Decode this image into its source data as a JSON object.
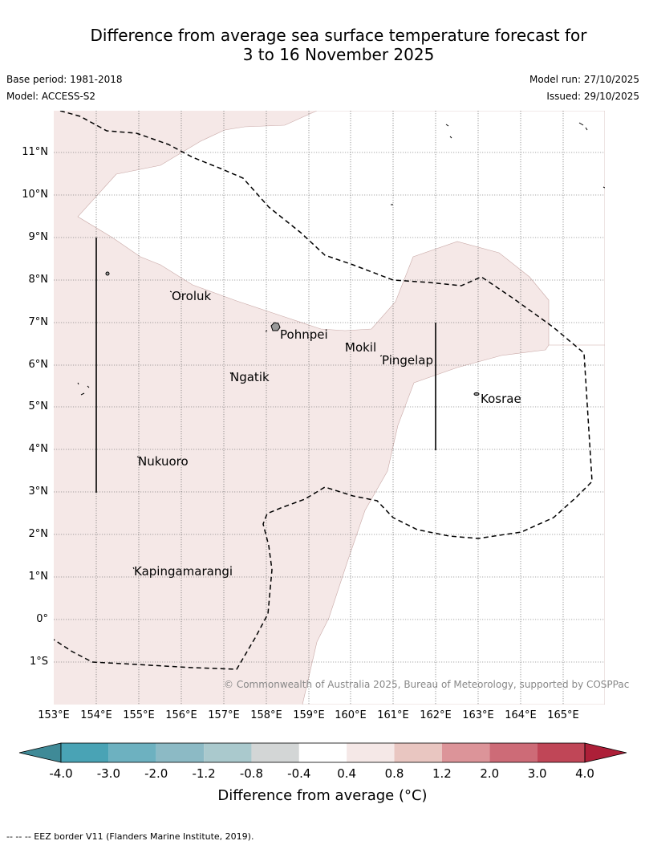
{
  "title": {
    "line1": "Difference from average sea surface temperature forecast for",
    "line2": "3 to 16 November 2025"
  },
  "meta": {
    "base_period": "Base period: 1981-2018",
    "model": "Model: ACCESS-S2",
    "model_run": "Model run: 27/10/2025",
    "issued": "Issued: 29/10/2025"
  },
  "map": {
    "lat_labels": [
      "11°N",
      "10°N",
      "9°N",
      "8°N",
      "7°N",
      "6°N",
      "5°N",
      "4°N",
      "3°N",
      "2°N",
      "1°N",
      "0°",
      "1°S"
    ],
    "lon_labels": [
      "153°E",
      "154°E",
      "155°E",
      "156°E",
      "157°E",
      "158°E",
      "159°E",
      "160°E",
      "161°E",
      "162°E",
      "163°E",
      "164°E",
      "165°E"
    ],
    "islands": {
      "oroluk": "Oroluk",
      "pohnpei": "Pohnpei",
      "mokil": "Mokil",
      "pingelap": "Pingelap",
      "ngatik": "Ngatik",
      "kosrae": "Kosrae",
      "nukuoro": "Nukuoro",
      "kapingamarangi": "Kapingamarangi"
    },
    "copyright": "© Commonwealth of Australia 2025, Bureau of Meteorology, supported by COSPPac",
    "colors": {
      "warm_fill": "#f5e8e7",
      "ocean_neutral": "#ffffff"
    }
  },
  "colorbar": {
    "ticks": [
      "-4.0",
      "-3.0",
      "-2.0",
      "-1.2",
      "-0.8",
      "-0.4",
      "0.4",
      "0.8",
      "1.2",
      "2.0",
      "3.0",
      "4.0"
    ],
    "colors": [
      "#3f8a97",
      "#49a3b5",
      "#6db1c0",
      "#8cbac5",
      "#aac9cd",
      "#d3d6d6",
      "#ffffff",
      "#f5e8e7",
      "#e9c6c1",
      "#dc9499",
      "#cd6b77",
      "#c04657",
      "#ad1f38"
    ],
    "title": "Difference from average (°C)"
  },
  "footnote": "-- -- -- EEZ border V11 (Flanders Marine Institute, 2019)."
}
